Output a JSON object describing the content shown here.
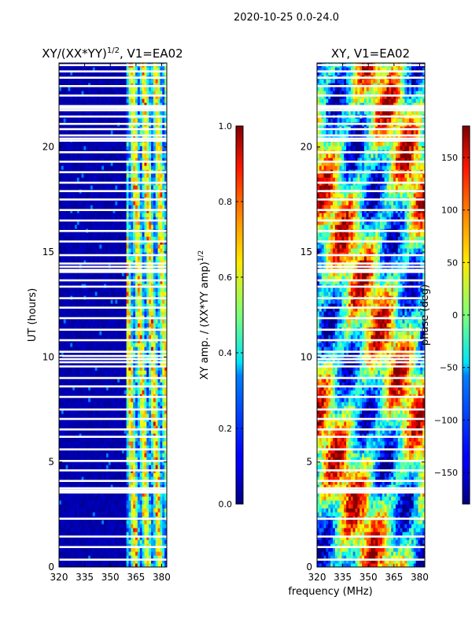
{
  "figure": {
    "suptitle": "2020-10-25 0.0-24.0",
    "xlabel_shared": "frequency (MHz)"
  },
  "chart_data": [
    {
      "type": "heatmap",
      "title": "XY/(XX*YY)^{1/2}, V1=EA02",
      "title_main": "XY/(XX*YY)",
      "title_sup": "1/2",
      "title_suffix": ", V1=EA02",
      "xlabel": "",
      "ylabel": "UT (hours)",
      "xlim": [
        320,
        383
      ],
      "ylim": [
        0,
        24
      ],
      "xticks": [
        320,
        335,
        350,
        365,
        380
      ],
      "yticks": [
        0,
        5,
        10,
        15,
        20
      ],
      "colorbar": {
        "label_main": "XY amp. / (XX*YY amp)",
        "label_sup": "1/2",
        "range": [
          0.0,
          1.0
        ],
        "ticks": [
          "0.0",
          "0.2",
          "0.4",
          "0.6",
          "0.8",
          "1.0"
        ],
        "tick_values": [
          0.0,
          0.2,
          0.4,
          0.6,
          0.8,
          1.0
        ],
        "colormap": "jet"
      },
      "pattern": "mostly near 0 below 360 MHz; values 0.2-0.8 in streaks between 360 and 383 MHz"
    },
    {
      "type": "heatmap",
      "title": "XY, V1=EA02",
      "xlabel": "",
      "ylabel": "",
      "xlim": [
        320,
        383
      ],
      "ylim": [
        0,
        24
      ],
      "xticks": [
        320,
        335,
        350,
        365,
        380
      ],
      "yticks": [
        0,
        5,
        10,
        15,
        20
      ],
      "colorbar": {
        "label": "phase (deg)",
        "range": [
          -180,
          180
        ],
        "ticks": [
          "−150",
          "−100",
          "−50",
          "0",
          "50",
          "100",
          "150"
        ],
        "tick_values": [
          -150,
          -100,
          -50,
          0,
          50,
          100,
          150
        ],
        "colormap": "jet"
      },
      "pattern": "phase wraps across full -180 to 180 range with diagonal banding"
    }
  ],
  "flagged_hours": [
    0.35,
    0.95,
    1.45,
    2.3,
    3.55,
    3.65,
    3.75,
    4.1,
    4.6,
    5.05,
    5.6,
    6.2,
    6.55,
    7.05,
    7.5,
    8.1,
    8.6,
    9.0,
    9.55,
    9.75,
    9.9,
    10.05,
    10.25,
    10.8,
    11.3,
    11.85,
    12.35,
    12.8,
    13.35,
    13.65,
    14.05,
    14.15,
    14.3,
    14.45,
    14.85,
    15.5,
    16.0,
    16.5,
    17.0,
    17.5,
    17.9,
    18.3,
    18.8,
    19.3,
    19.75,
    20.3,
    20.4,
    20.55,
    20.85,
    21.1,
    21.45,
    21.75,
    21.85,
    21.95,
    22.45,
    22.9,
    23.3,
    23.6,
    23.9
  ]
}
